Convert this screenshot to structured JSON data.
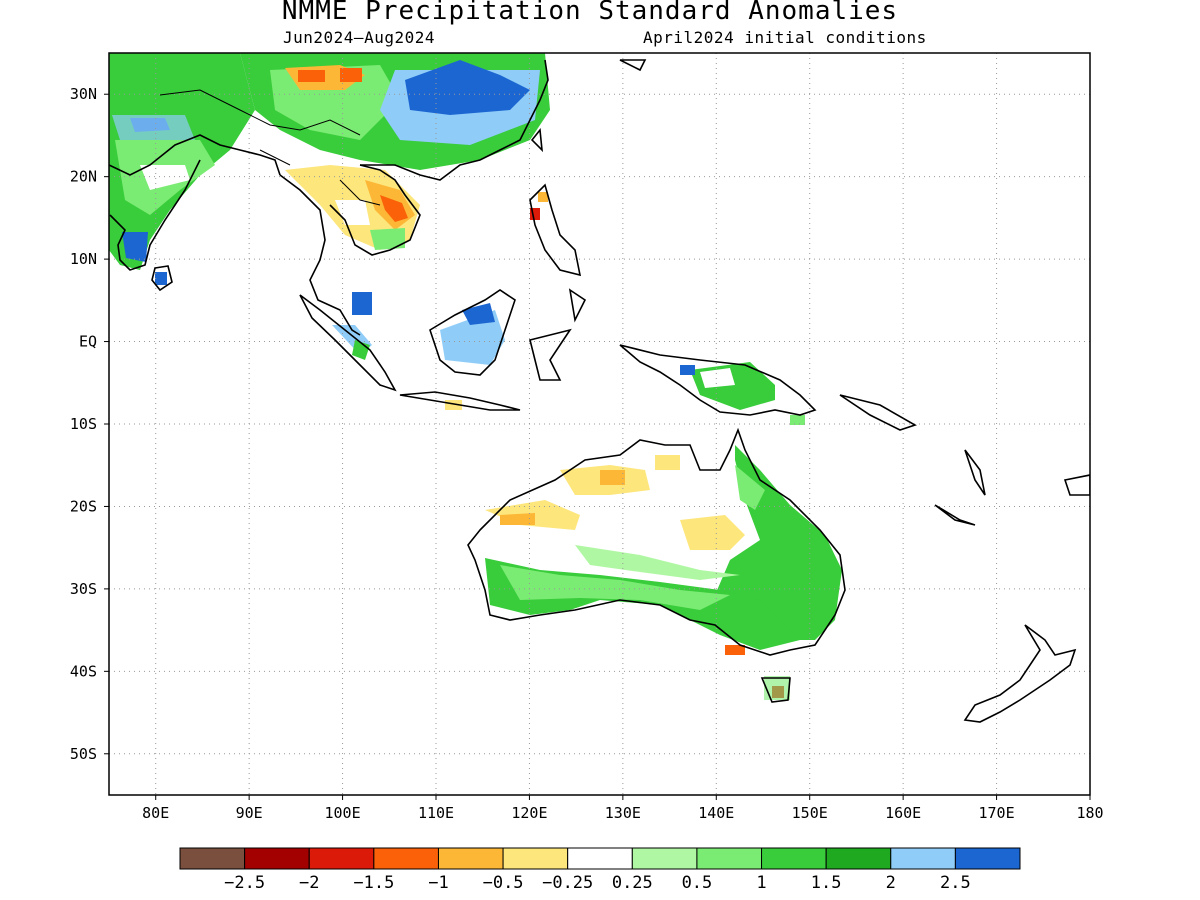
{
  "title": "NMME Precipitation Standard Anomalies",
  "period": "Jun2024–Aug2024",
  "initial_conditions": "April2024 initial conditions",
  "map": {
    "projection": "lat-lon",
    "lon_range": [
      75,
      180
    ],
    "lat_range": [
      -55,
      35
    ],
    "lat_ticks": [
      {
        "value": 30,
        "label": "30N"
      },
      {
        "value": 20,
        "label": "20N"
      },
      {
        "value": 10,
        "label": "10N"
      },
      {
        "value": 0,
        "label": "EQ"
      },
      {
        "value": -10,
        "label": "10S"
      },
      {
        "value": -20,
        "label": "20S"
      },
      {
        "value": -30,
        "label": "30S"
      },
      {
        "value": -40,
        "label": "40S"
      },
      {
        "value": -50,
        "label": "50S"
      }
    ],
    "lon_ticks": [
      {
        "value": 80,
        "label": "80E"
      },
      {
        "value": 90,
        "label": "90E"
      },
      {
        "value": 100,
        "label": "100E"
      },
      {
        "value": 110,
        "label": "110E"
      },
      {
        "value": 120,
        "label": "120E"
      },
      {
        "value": 130,
        "label": "130E"
      },
      {
        "value": 140,
        "label": "140E"
      },
      {
        "value": 150,
        "label": "150E"
      },
      {
        "value": 160,
        "label": "160E"
      },
      {
        "value": 170,
        "label": "170E"
      },
      {
        "value": 180,
        "label": "180"
      }
    ],
    "grid": "dotted"
  },
  "colorbar": {
    "colors": [
      "#7a4f3e",
      "#a30000",
      "#dc1a0a",
      "#fa6108",
      "#fcb737",
      "#fde67c",
      "#ffffff",
      "#b0f7a3",
      "#7bec73",
      "#39cc3b",
      "#1ea921",
      "#8fcdf8",
      "#1c66d2"
    ],
    "labels": [
      "−2.5",
      "−2",
      "−1.5",
      "−1",
      "−0.5",
      "−0.25",
      "0.25",
      "0.5",
      "1",
      "1.5",
      "2",
      "2.5"
    ]
  }
}
